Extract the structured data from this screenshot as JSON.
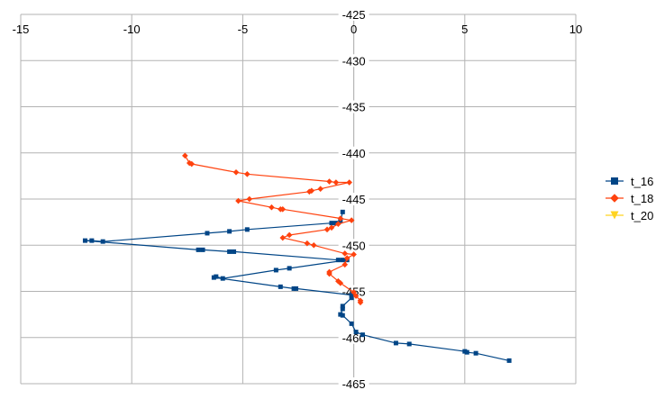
{
  "chart_data": {
    "type": "scatter",
    "title": "",
    "xlabel": "",
    "ylabel": "",
    "xlim": [
      -15,
      10
    ],
    "ylim": [
      -465,
      -425
    ],
    "x_ticks": [
      -15,
      -10,
      -5,
      0,
      5,
      10
    ],
    "y_ticks": [
      -425,
      -430,
      -435,
      -440,
      -445,
      -450,
      -455,
      -460,
      -465
    ],
    "x_tick_labels": [
      "-15",
      "-10",
      "-5",
      "0",
      "5",
      "10"
    ],
    "y_tick_labels": [
      "-425",
      "-430",
      "-435",
      "-440",
      "-445",
      "-450",
      "-455",
      "-460",
      "-465"
    ],
    "grid": true,
    "legend_position": "right",
    "series": [
      {
        "name": "t_16",
        "color": "#004586",
        "marker": "square",
        "points": [
          [
            -0.5,
            -446.4
          ],
          [
            -0.6,
            -447.4
          ],
          [
            -0.8,
            -447.6
          ],
          [
            -1.0,
            -447.6
          ],
          [
            -4.8,
            -448.3
          ],
          [
            -5.6,
            -448.5
          ],
          [
            -6.6,
            -448.7
          ],
          [
            -11.3,
            -449.6
          ],
          [
            -11.8,
            -449.5
          ],
          [
            -12.1,
            -449.5
          ],
          [
            -7.0,
            -450.5
          ],
          [
            -6.8,
            -450.5
          ],
          [
            -5.6,
            -450.7
          ],
          [
            -5.4,
            -450.7
          ],
          [
            -0.7,
            -451.6
          ],
          [
            -0.5,
            -451.6
          ],
          [
            -0.3,
            -451.6
          ],
          [
            -2.9,
            -452.5
          ],
          [
            -3.5,
            -452.7
          ],
          [
            -5.9,
            -453.6
          ],
          [
            -6.2,
            -453.4
          ],
          [
            -6.3,
            -453.5
          ],
          [
            -3.3,
            -454.5
          ],
          [
            -2.7,
            -454.7
          ],
          [
            -2.6,
            -454.7
          ],
          [
            -0.1,
            -455.4
          ],
          [
            -0.1,
            -455.7
          ],
          [
            -0.5,
            -456.6
          ],
          [
            -0.5,
            -456.9
          ],
          [
            -0.6,
            -457.5
          ],
          [
            -0.5,
            -457.6
          ],
          [
            -0.1,
            -458.5
          ],
          [
            0.1,
            -459.4
          ],
          [
            0.4,
            -459.7
          ],
          [
            1.9,
            -460.6
          ],
          [
            2.5,
            -460.7
          ],
          [
            5.0,
            -461.5
          ],
          [
            5.1,
            -461.6
          ],
          [
            5.5,
            -461.7
          ],
          [
            7.0,
            -462.5
          ]
        ]
      },
      {
        "name": "t_18",
        "color": "#ff420e",
        "marker": "diamond",
        "points": [
          [
            -7.6,
            -440.3
          ],
          [
            -7.4,
            -441.1
          ],
          [
            -7.3,
            -441.2
          ],
          [
            -5.3,
            -442.1
          ],
          [
            -4.8,
            -442.3
          ],
          [
            -1.1,
            -443.1
          ],
          [
            -0.8,
            -443.2
          ],
          [
            -0.2,
            -443.2
          ],
          [
            -1.5,
            -443.9
          ],
          [
            -1.9,
            -444.1
          ],
          [
            -2.0,
            -444.2
          ],
          [
            -4.7,
            -445.0
          ],
          [
            -5.2,
            -445.2
          ],
          [
            -3.7,
            -445.9
          ],
          [
            -3.3,
            -446.1
          ],
          [
            -3.2,
            -446.1
          ],
          [
            -0.6,
            -447.1
          ],
          [
            -0.1,
            -447.3
          ],
          [
            -0.7,
            -447.7
          ],
          [
            -1.0,
            -448.1
          ],
          [
            -1.2,
            -448.3
          ],
          [
            -2.9,
            -448.9
          ],
          [
            -3.2,
            -449.2
          ],
          [
            -2.1,
            -449.8
          ],
          [
            -1.8,
            -450.0
          ],
          [
            -0.4,
            -450.9
          ],
          [
            0.0,
            -451.0
          ],
          [
            -0.3,
            -451.4
          ],
          [
            -0.4,
            -452.1
          ],
          [
            -1.1,
            -452.9
          ],
          [
            -1.1,
            -453.1
          ],
          [
            -0.7,
            -453.9
          ],
          [
            -0.6,
            -454.1
          ],
          [
            0.0,
            -455.1
          ],
          [
            0.1,
            -455.5
          ],
          [
            0.3,
            -456.0
          ],
          [
            0.3,
            -456.2
          ]
        ]
      },
      {
        "name": "t_20",
        "color": "#ffd320",
        "marker": "triangle",
        "points": []
      }
    ]
  }
}
